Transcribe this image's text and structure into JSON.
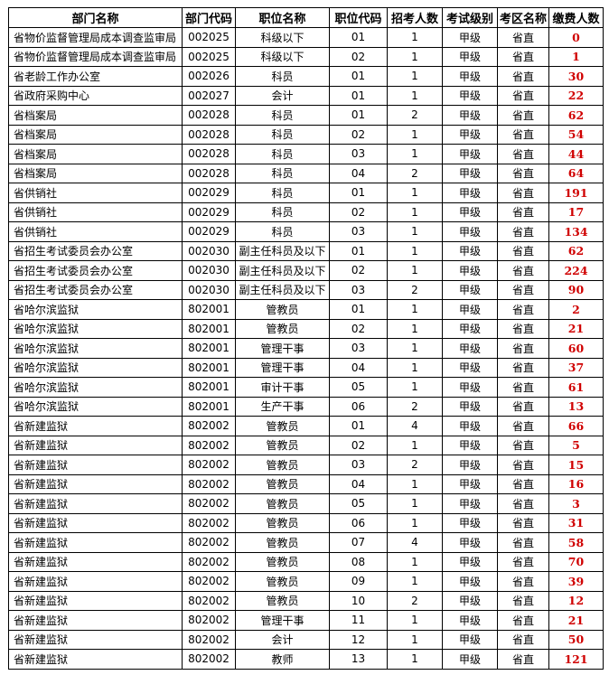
{
  "headers": [
    "部门名称",
    "部门代码",
    "职位名称",
    "职位代码",
    "招考人数",
    "考试级别",
    "考区名称",
    "缴费人数"
  ],
  "rows": [
    [
      "省物价监督管理局成本调查监审局",
      "002025",
      "科级以下",
      "01",
      "1",
      "甲级",
      "省直",
      "0"
    ],
    [
      "省物价监督管理局成本调查监审局",
      "002025",
      "科级以下",
      "02",
      "1",
      "甲级",
      "省直",
      "1"
    ],
    [
      "省老龄工作办公室",
      "002026",
      "科员",
      "01",
      "1",
      "甲级",
      "省直",
      "30"
    ],
    [
      "省政府采购中心",
      "002027",
      "会计",
      "01",
      "1",
      "甲级",
      "省直",
      "22"
    ],
    [
      "省档案局",
      "002028",
      "科员",
      "01",
      "2",
      "甲级",
      "省直",
      "62"
    ],
    [
      "省档案局",
      "002028",
      "科员",
      "02",
      "1",
      "甲级",
      "省直",
      "54"
    ],
    [
      "省档案局",
      "002028",
      "科员",
      "03",
      "1",
      "甲级",
      "省直",
      "44"
    ],
    [
      "省档案局",
      "002028",
      "科员",
      "04",
      "2",
      "甲级",
      "省直",
      "64"
    ],
    [
      "省供销社",
      "002029",
      "科员",
      "01",
      "1",
      "甲级",
      "省直",
      "191"
    ],
    [
      "省供销社",
      "002029",
      "科员",
      "02",
      "1",
      "甲级",
      "省直",
      "17"
    ],
    [
      "省供销社",
      "002029",
      "科员",
      "03",
      "1",
      "甲级",
      "省直",
      "134"
    ],
    [
      "省招生考试委员会办公室",
      "002030",
      "副主任科员及以下",
      "01",
      "1",
      "甲级",
      "省直",
      "62"
    ],
    [
      "省招生考试委员会办公室",
      "002030",
      "副主任科员及以下",
      "02",
      "1",
      "甲级",
      "省直",
      "224"
    ],
    [
      "省招生考试委员会办公室",
      "002030",
      "副主任科员及以下",
      "03",
      "2",
      "甲级",
      "省直",
      "90"
    ],
    [
      "省哈尔滨监狱",
      "802001",
      "管教员",
      "01",
      "1",
      "甲级",
      "省直",
      "2"
    ],
    [
      "省哈尔滨监狱",
      "802001",
      "管教员",
      "02",
      "1",
      "甲级",
      "省直",
      "21"
    ],
    [
      "省哈尔滨监狱",
      "802001",
      "管理干事",
      "03",
      "1",
      "甲级",
      "省直",
      "60"
    ],
    [
      "省哈尔滨监狱",
      "802001",
      "管理干事",
      "04",
      "1",
      "甲级",
      "省直",
      "37"
    ],
    [
      "省哈尔滨监狱",
      "802001",
      "审计干事",
      "05",
      "1",
      "甲级",
      "省直",
      "61"
    ],
    [
      "省哈尔滨监狱",
      "802001",
      "生产干事",
      "06",
      "2",
      "甲级",
      "省直",
      "13"
    ],
    [
      "省新建监狱",
      "802002",
      "管教员",
      "01",
      "4",
      "甲级",
      "省直",
      "66"
    ],
    [
      "省新建监狱",
      "802002",
      "管教员",
      "02",
      "1",
      "甲级",
      "省直",
      "5"
    ],
    [
      "省新建监狱",
      "802002",
      "管教员",
      "03",
      "2",
      "甲级",
      "省直",
      "15"
    ],
    [
      "省新建监狱",
      "802002",
      "管教员",
      "04",
      "1",
      "甲级",
      "省直",
      "16"
    ],
    [
      "省新建监狱",
      "802002",
      "管教员",
      "05",
      "1",
      "甲级",
      "省直",
      "3"
    ],
    [
      "省新建监狱",
      "802002",
      "管教员",
      "06",
      "1",
      "甲级",
      "省直",
      "31"
    ],
    [
      "省新建监狱",
      "802002",
      "管教员",
      "07",
      "4",
      "甲级",
      "省直",
      "58"
    ],
    [
      "省新建监狱",
      "802002",
      "管教员",
      "08",
      "1",
      "甲级",
      "省直",
      "70"
    ],
    [
      "省新建监狱",
      "802002",
      "管教员",
      "09",
      "1",
      "甲级",
      "省直",
      "39"
    ],
    [
      "省新建监狱",
      "802002",
      "管教员",
      "10",
      "2",
      "甲级",
      "省直",
      "12"
    ],
    [
      "省新建监狱",
      "802002",
      "管理干事",
      "11",
      "1",
      "甲级",
      "省直",
      "21"
    ],
    [
      "省新建监狱",
      "802002",
      "会计",
      "12",
      "1",
      "甲级",
      "省直",
      "50"
    ],
    [
      "省新建监狱",
      "802002",
      "教师",
      "13",
      "1",
      "甲级",
      "省直",
      "121"
    ]
  ],
  "colors": {
    "highlight": "#d00000"
  }
}
